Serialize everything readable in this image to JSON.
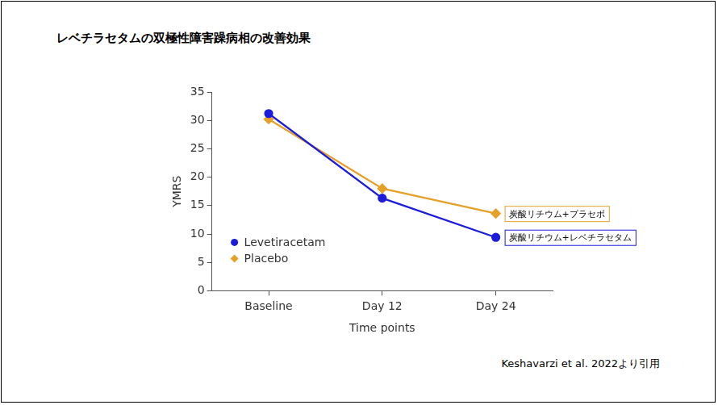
{
  "chart_data": {
    "type": "line",
    "title": "レベチラセタムの双極性障害躁病相の改善効果",
    "x_label": "Time points",
    "y_label": "YMRS",
    "categories": [
      "Baseline",
      "Day 12",
      "Day 24"
    ],
    "series": [
      {
        "name": "Levetiracetam",
        "color": "#1c1cdc",
        "marker": "circle",
        "values": [
          31.2,
          16.3,
          9.4
        ]
      },
      {
        "name": "Placebo",
        "color": "#e6a028",
        "marker": "diamond",
        "values": [
          30.2,
          18.0,
          13.6
        ]
      }
    ],
    "annotations": [
      {
        "text": "炭酸リチウム+プラセボ",
        "series": "Placebo"
      },
      {
        "text": "炭酸リチウム+レベチラセタム",
        "series": "Levetiracetam"
      }
    ],
    "source": "Keshavarzi et al. 2022より引用",
    "ylim": [
      0,
      35
    ],
    "yticks": [
      0,
      5,
      10,
      15,
      20,
      25,
      30,
      35
    ],
    "grid": false,
    "legend": "lower left"
  }
}
